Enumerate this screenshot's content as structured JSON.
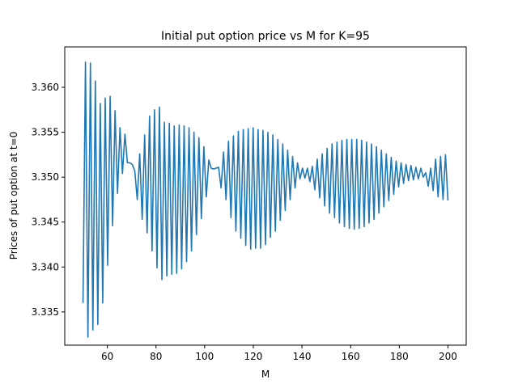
{
  "chart_data": {
    "type": "line",
    "title": "Initial put option price vs M for K=95",
    "xlabel": "M",
    "ylabel": "Prices of put option at t=0",
    "xlim": [
      42.5,
      207.5
    ],
    "ylim": [
      3.3313,
      3.3645
    ],
    "xticks": [
      60,
      80,
      100,
      120,
      140,
      160,
      180,
      200
    ],
    "yticks": [
      3.335,
      3.34,
      3.345,
      3.35,
      3.355,
      3.36
    ],
    "ytick_labels": [
      "3.335",
      "3.340",
      "3.345",
      "3.350",
      "3.355",
      "3.360"
    ],
    "grid": false,
    "line_color": "#1f77b4",
    "x_start": 50,
    "x_end": 200,
    "y": [
      3.336,
      3.3628,
      3.3322,
      3.3627,
      3.333,
      3.3607,
      3.3336,
      3.3582,
      3.336,
      3.3588,
      3.3402,
      3.359,
      3.3446,
      3.3574,
      3.3482,
      3.3555,
      3.3504,
      3.3548,
      3.3516,
      3.3516,
      3.3514,
      3.3507,
      3.3475,
      3.3526,
      3.3453,
      3.3547,
      3.3438,
      3.3568,
      3.3418,
      3.3575,
      3.3399,
      3.3578,
      3.3386,
      3.3561,
      3.339,
      3.356,
      3.3392,
      3.3557,
      3.3393,
      3.3558,
      3.3398,
      3.3557,
      3.3406,
      3.3555,
      3.3418,
      3.355,
      3.3436,
      3.3544,
      3.3454,
      3.3534,
      3.3478,
      3.3519,
      3.351,
      3.3509,
      3.351,
      3.3511,
      3.3488,
      3.3528,
      3.3475,
      3.354,
      3.3455,
      3.3546,
      3.344,
      3.3551,
      3.3432,
      3.3553,
      3.3424,
      3.3554,
      3.342,
      3.3555,
      3.3421,
      3.3553,
      3.3421,
      3.3552,
      3.3425,
      3.355,
      3.3433,
      3.3547,
      3.344,
      3.3542,
      3.3452,
      3.3537,
      3.3463,
      3.353,
      3.3475,
      3.3523,
      3.3488,
      3.3516,
      3.3498,
      3.351,
      3.3499,
      3.351,
      3.3495,
      3.3512,
      3.3486,
      3.352,
      3.3477,
      3.3526,
      3.3468,
      3.3532,
      3.346,
      3.3537,
      3.3455,
      3.3539,
      3.3449,
      3.3541,
      3.3445,
      3.3542,
      3.3443,
      3.3542,
      3.3442,
      3.3542,
      3.3443,
      3.3541,
      3.3445,
      3.3539,
      3.3449,
      3.3537,
      3.3453,
      3.3534,
      3.346,
      3.353,
      3.3467,
      3.3526,
      3.3474,
      3.3522,
      3.3481,
      3.3518,
      3.3489,
      3.3516,
      3.3493,
      3.3514,
      3.3496,
      3.3513,
      3.3497,
      3.3511,
      3.3498,
      3.351,
      3.35,
      3.3505,
      3.349,
      3.351,
      3.3485,
      3.352,
      3.3478,
      3.3523,
      3.3475,
      3.3525,
      3.3474
    ]
  }
}
